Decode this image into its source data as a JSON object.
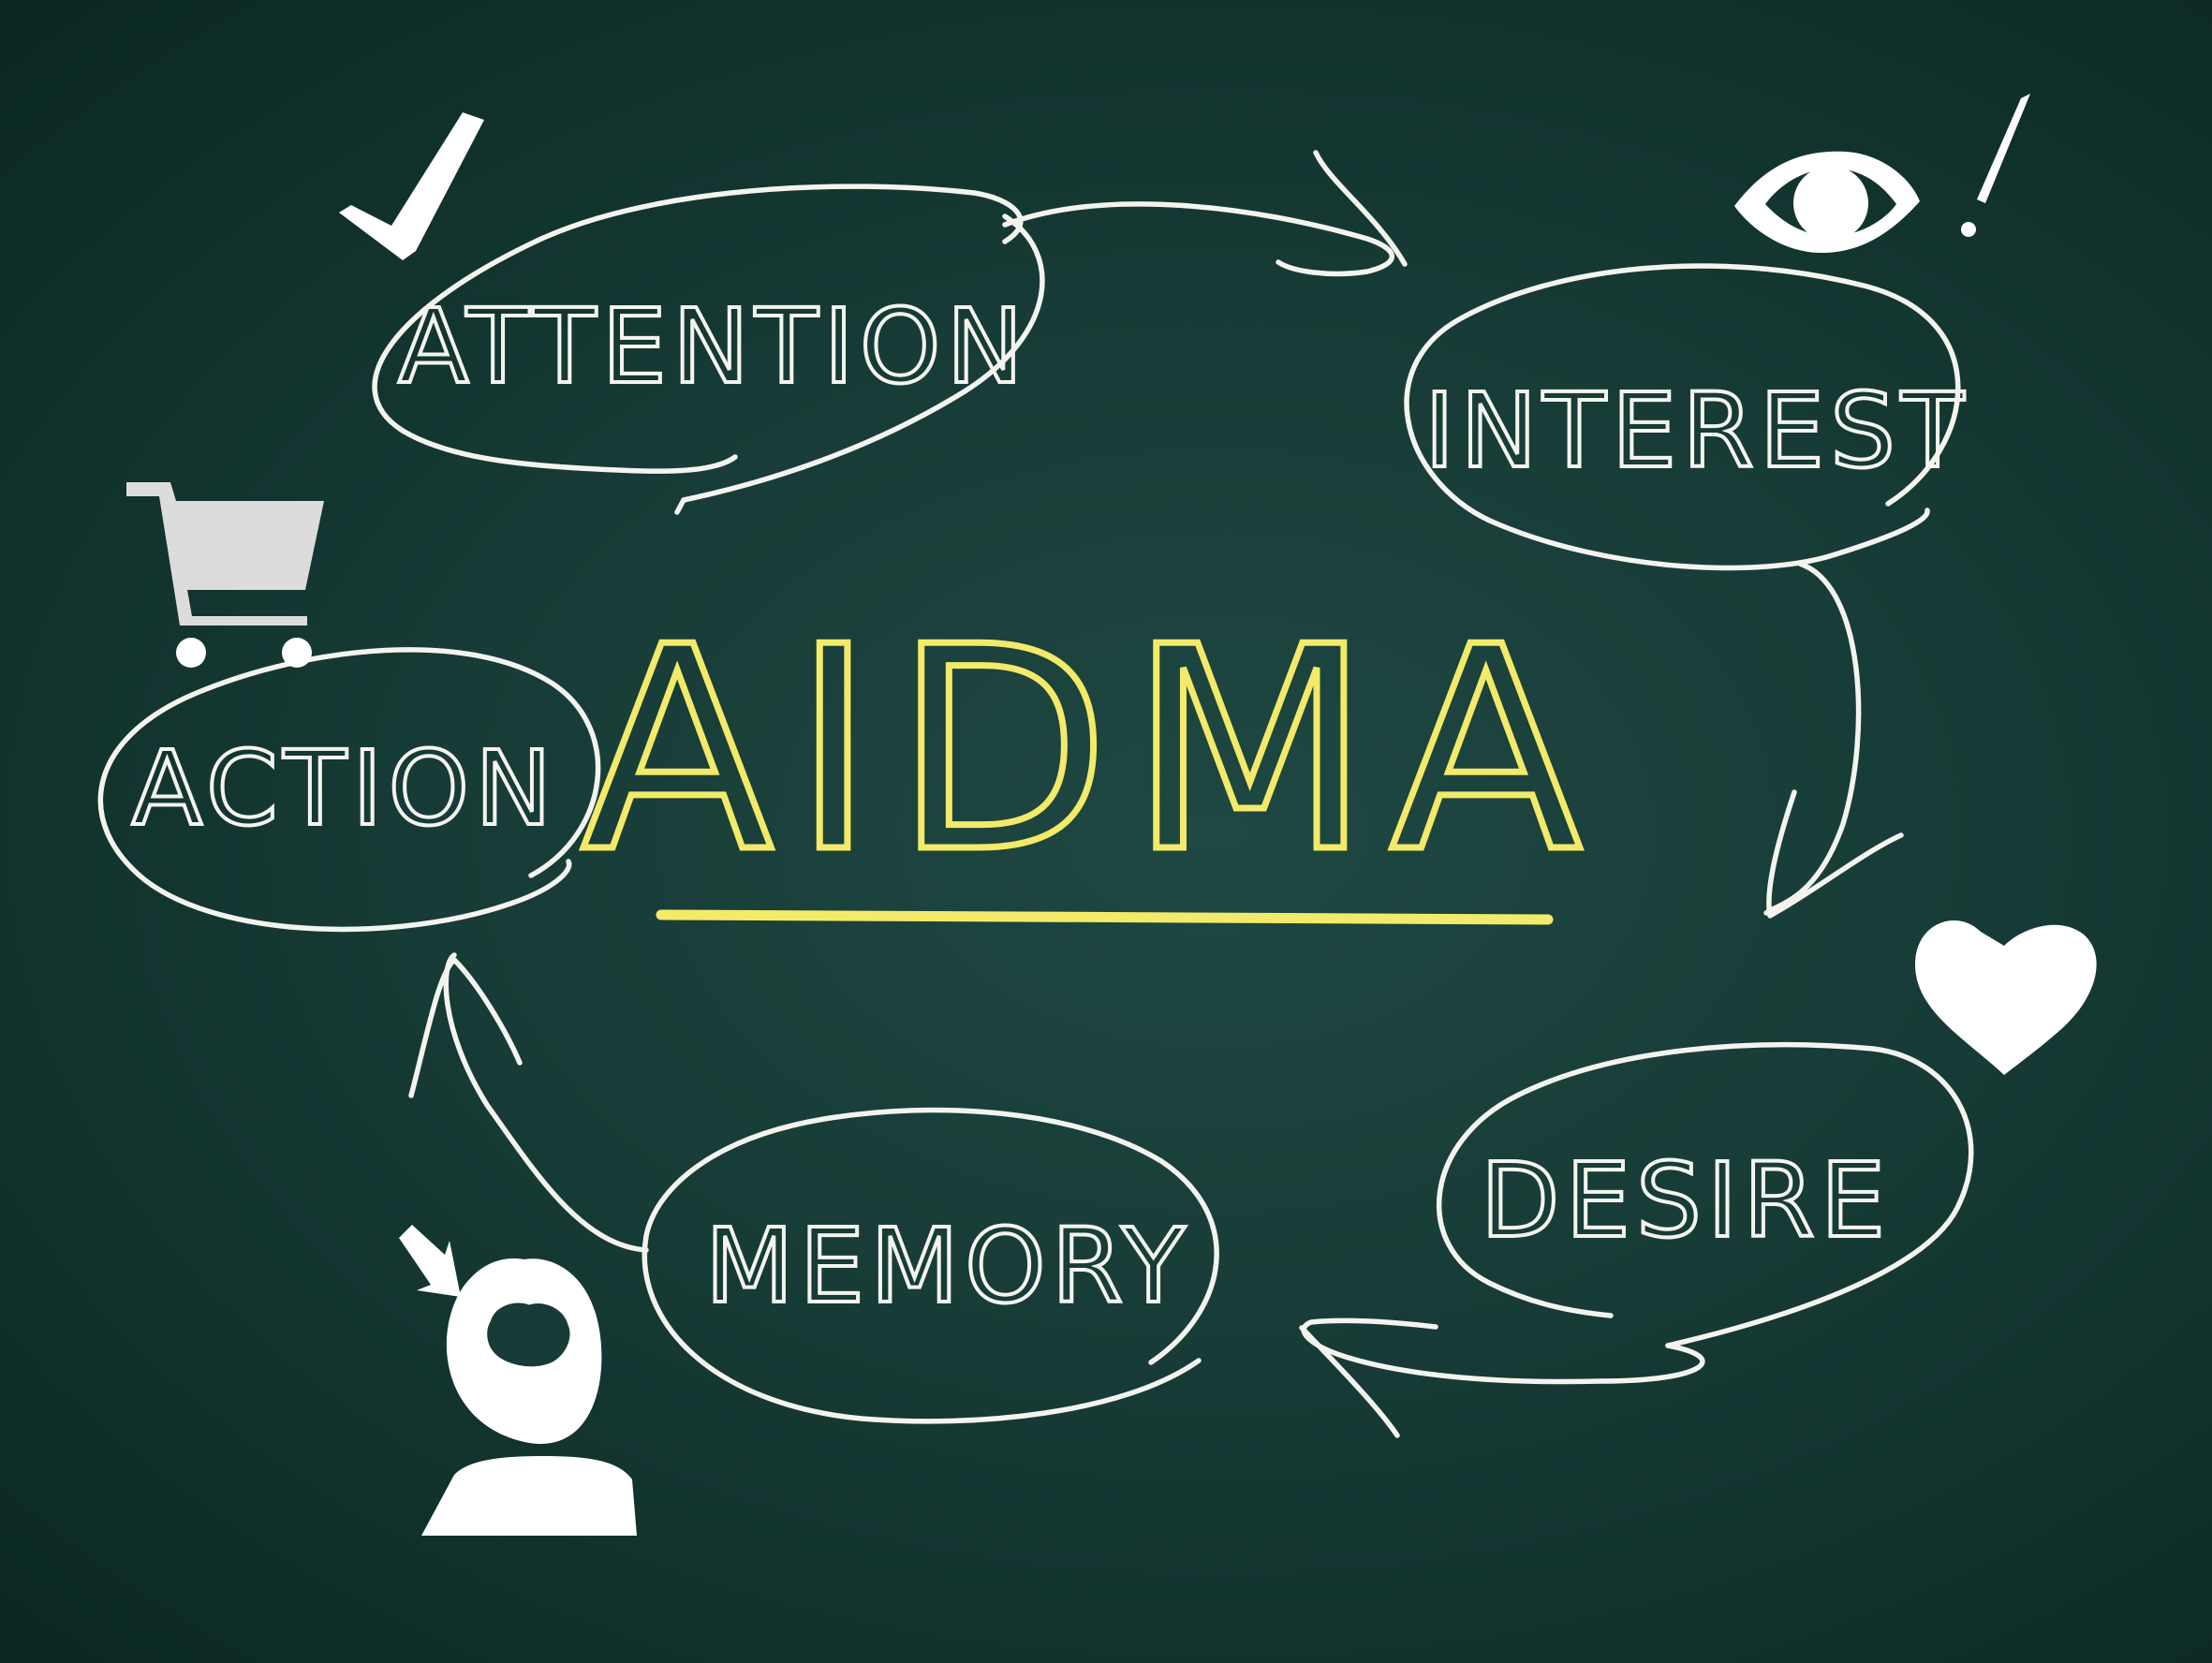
{
  "title": "AIDMA",
  "stages": {
    "attention": "ATTENTION",
    "interest": "INTEREST",
    "desire": "DESIRE",
    "memory": "MEMORY",
    "action": "ACTION"
  },
  "colors": {
    "background": "#173b36",
    "chalk": "#f4f4ee",
    "highlight": "#f3ea6a"
  },
  "icons": [
    "check-icon",
    "eye-icon",
    "exclamation-icon",
    "heart-icon",
    "head-icon",
    "cart-icon"
  ]
}
